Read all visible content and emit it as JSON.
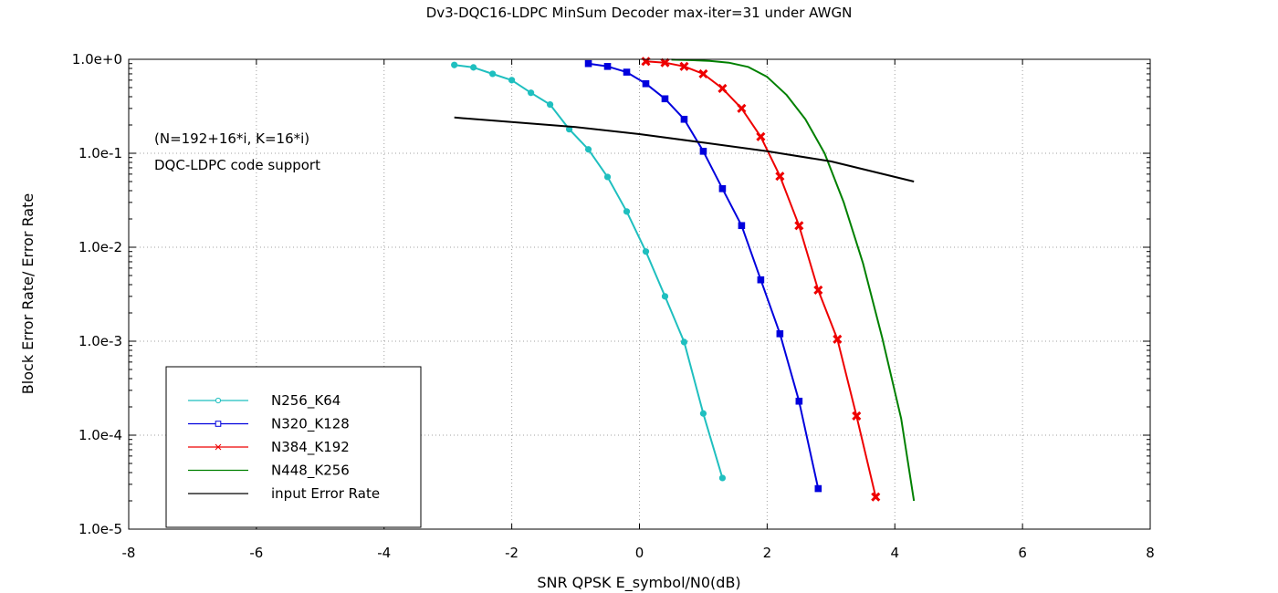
{
  "chart_data": {
    "type": "line",
    "title": "Dv3-DQC16-LDPC MinSum Decoder max-iter=31 under AWGN",
    "xlabel": "SNR QPSK E_symbol/N0(dB)",
    "ylabel": "Block Error Rate/ Error Rate",
    "xlim": [
      -8,
      8
    ],
    "ylim": [
      1e-05,
      1
    ],
    "yscale": "log",
    "grid": true,
    "legend_position": "bottom-left",
    "xticks": [
      {
        "value": -8,
        "label": "-8"
      },
      {
        "value": -6,
        "label": "-6"
      },
      {
        "value": -4,
        "label": "-4"
      },
      {
        "value": -2,
        "label": "-2"
      },
      {
        "value": 0,
        "label": "0"
      },
      {
        "value": 2,
        "label": "2"
      },
      {
        "value": 4,
        "label": "4"
      },
      {
        "value": 6,
        "label": "6"
      },
      {
        "value": 8,
        "label": "8"
      }
    ],
    "yticks": [
      {
        "value": 1,
        "label": "1.0e+0"
      },
      {
        "value": 0.1,
        "label": "1.0e-1"
      },
      {
        "value": 0.01,
        "label": "1.0e-2"
      },
      {
        "value": 0.001,
        "label": "1.0e-3"
      },
      {
        "value": 0.0001,
        "label": "1.0e-4"
      },
      {
        "value": 1e-05,
        "label": "1.0e-5"
      }
    ],
    "annotations": [
      "(N=192+16*i, K=16*i)",
      "DQC-LDPC code support"
    ],
    "series": [
      {
        "name": "N256_K64",
        "color": "#1fbfbf",
        "marker": "circle",
        "x": [
          -2.9,
          -2.6,
          -2.3,
          -2.0,
          -1.7,
          -1.4,
          -1.1,
          -0.8,
          -0.5,
          -0.2,
          0.1,
          0.4,
          0.7,
          1.0,
          1.3
        ],
        "y": [
          0.87,
          0.82,
          0.7,
          0.6,
          0.44,
          0.33,
          0.18,
          0.11,
          0.056,
          0.024,
          0.009,
          0.003,
          0.00098,
          0.00017,
          3.5e-05
        ]
      },
      {
        "name": "N320_K128",
        "color": "#0000dd",
        "marker": "square",
        "x": [
          -0.8,
          -0.5,
          -0.2,
          0.1,
          0.4,
          0.7,
          1.0,
          1.3,
          1.6,
          1.9,
          2.2,
          2.5,
          2.8
        ],
        "y": [
          0.9,
          0.84,
          0.73,
          0.55,
          0.38,
          0.23,
          0.105,
          0.042,
          0.017,
          0.0045,
          0.0012,
          0.00023,
          2.7e-05
        ]
      },
      {
        "name": "N384_K192",
        "color": "#ee0000",
        "marker": "cross",
        "x": [
          0.1,
          0.4,
          0.7,
          1.0,
          1.3,
          1.6,
          1.9,
          2.2,
          2.5,
          2.8,
          3.1,
          3.4,
          3.7
        ],
        "y": [
          0.95,
          0.92,
          0.84,
          0.7,
          0.49,
          0.3,
          0.15,
          0.057,
          0.017,
          0.0035,
          0.00105,
          0.00016,
          2.2e-05
        ]
      },
      {
        "name": "N448_K256",
        "color": "#008000",
        "marker": "none",
        "x": [
          0.5,
          0.8,
          1.1,
          1.4,
          1.7,
          2.0,
          2.3,
          2.6,
          2.9,
          3.2,
          3.5,
          3.8,
          4.1,
          4.3
        ],
        "y": [
          0.99,
          0.98,
          0.96,
          0.92,
          0.83,
          0.65,
          0.42,
          0.23,
          0.1,
          0.03,
          0.0068,
          0.0011,
          0.00015,
          2e-05
        ]
      },
      {
        "name": "input Error Rate",
        "color": "#000000",
        "marker": "none",
        "x": [
          -2.9,
          -2.0,
          -1.0,
          0.0,
          1.0,
          2.0,
          3.0,
          4.3
        ],
        "y": [
          0.24,
          0.215,
          0.19,
          0.16,
          0.13,
          0.105,
          0.082,
          0.05
        ]
      }
    ]
  }
}
